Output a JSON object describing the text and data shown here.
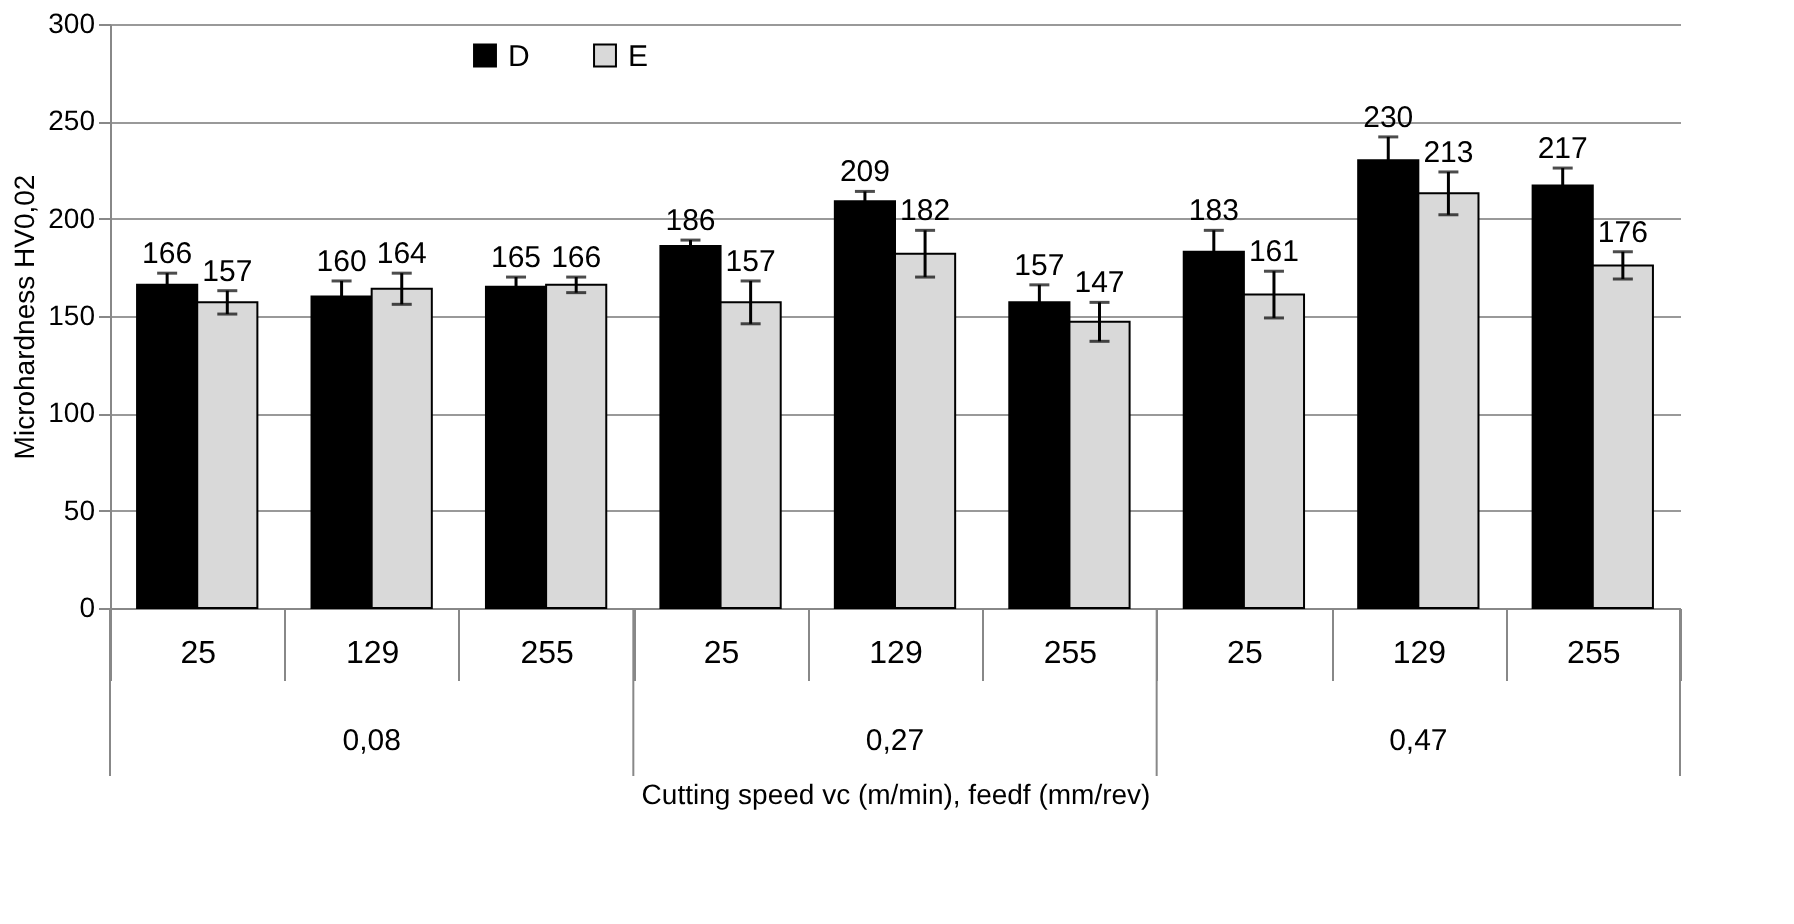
{
  "chart_data": {
    "type": "bar",
    "ylabel": "Microhardness HV0,02",
    "xlabel": "Cutting speed vc (m/min), feedf (mm/rev)",
    "categories": [
      "25",
      "129",
      "255",
      "25",
      "129",
      "255",
      "25",
      "129",
      "255"
    ],
    "series": [
      {
        "name": "D",
        "color": "#000000",
        "values": [
          166,
          160,
          165,
          186,
          209,
          157,
          183,
          230,
          217
        ],
        "errors": [
          6,
          8,
          5,
          3,
          5,
          9,
          11,
          12,
          9
        ]
      },
      {
        "name": "E",
        "color": "#d9d9d9",
        "values": [
          157,
          164,
          166,
          157,
          182,
          147,
          161,
          213,
          176
        ],
        "errors": [
          6,
          8,
          4,
          11,
          12,
          10,
          12,
          11,
          7
        ]
      }
    ],
    "annotations": [
      "0,08",
      "0,27",
      "0,47"
    ],
    "ylim": [
      0,
      300
    ],
    "yticks": [
      0,
      50,
      100,
      150,
      200,
      250,
      300
    ],
    "grid": "y",
    "legend": "top",
    "data_labels": true
  }
}
